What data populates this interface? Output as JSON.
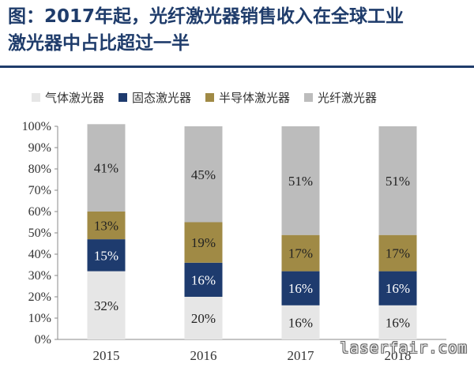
{
  "title_line1": "图：2017年起，光纤激光器销售收入在全球工业",
  "title_line2": "激光器中占比超过一半",
  "watermark": "laserfair.com",
  "chart_data": {
    "type": "bar",
    "stacked": true,
    "categories": [
      "2015",
      "2016",
      "2017",
      "2018"
    ],
    "series": [
      {
        "name": "气体激光器",
        "color": "#e6e6e6",
        "values": [
          32,
          20,
          16,
          16
        ],
        "labels": [
          "32%",
          "20%",
          "16%",
          "16%"
        ]
      },
      {
        "name": "固态激光器",
        "color": "#1e3b6e",
        "values": [
          15,
          16,
          16,
          16
        ],
        "labels": [
          "15%",
          "16%",
          "16%",
          "16%"
        ]
      },
      {
        "name": "半导体激光器",
        "color": "#a08a45",
        "values": [
          13,
          19,
          17,
          17
        ],
        "labels": [
          "13%",
          "19%",
          "17%",
          "17%"
        ]
      },
      {
        "name": "光纤激光器",
        "color": "#bcbcbc",
        "values": [
          41,
          45,
          51,
          51
        ],
        "labels": [
          "41%",
          "45%",
          "51%",
          "51%"
        ]
      }
    ],
    "ylim": [
      0,
      100
    ],
    "yticks": [
      "0%",
      "10%",
      "20%",
      "30%",
      "40%",
      "50%",
      "60%",
      "70%",
      "80%",
      "90%",
      "100%"
    ],
    "grid": false,
    "legend": "top"
  }
}
